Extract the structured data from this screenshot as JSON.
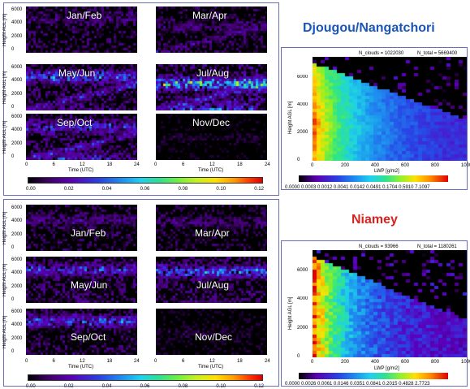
{
  "colors": {
    "frame": "#6a6fb5",
    "title_blue": "#1a56b8",
    "title_red": "#d8231d"
  },
  "left_top": {
    "panels": [
      "Jan/Feb",
      "Mar/Apr",
      "May/Jun",
      "Jul/Aug",
      "Sep/Oct",
      "Nov/Dec"
    ],
    "ylabel": "Height AGL [m]",
    "y_ticks": [
      "6000",
      "4000",
      "2000",
      "0"
    ],
    "x_ticks_left": [
      "0",
      "6",
      "12",
      "18",
      "24"
    ],
    "x_ticks_right": [
      "0",
      "6",
      "12",
      "18",
      "24"
    ],
    "xlabel": "Time (UTC)",
    "colorbar_ticks": [
      "0.00",
      "0.02",
      "0.04",
      "0.06",
      "0.08",
      "0.10",
      "0.12"
    ]
  },
  "left_bottom": {
    "panels": [
      "Jan/Feb",
      "Mar/Apr",
      "May/Jun",
      "Jul/Aug",
      "Sep/Oct",
      "Nov/Dec"
    ],
    "ylabel": "Height AGL [m]",
    "y_ticks": [
      "6000",
      "4000",
      "2000",
      "0"
    ],
    "x_ticks_left": [
      "0",
      "6",
      "12",
      "18",
      "24"
    ],
    "x_ticks_right": [
      "0",
      "6",
      "12",
      "18",
      "24"
    ],
    "xlabel": "Time (UTC)",
    "colorbar_ticks": [
      "0.00",
      "0.02",
      "0.04",
      "0.06",
      "0.08",
      "0.10",
      "0.12"
    ]
  },
  "right_top": {
    "title": "Djougou/Nangatchori",
    "n_clouds": "N_clouds = 1022030",
    "n_total": "N_total = 5669400",
    "ylabel": "Height AGL [m]",
    "xlabel": "LWP [g/m2]",
    "y_ticks": [
      "6000",
      "4000",
      "2000",
      "0"
    ],
    "x_ticks": [
      "0",
      "200",
      "400",
      "600",
      "800",
      "1000"
    ],
    "colorbar_ticks": "0.0000  0.0003  0.0012  0.0041  0.0142  0.0491  0.1704  0.5910  7.1097"
  },
  "right_bottom": {
    "title": "Niamey",
    "n_clouds": "N_clouds =   93966",
    "n_total": "N_total = 1180261",
    "ylabel": "Height AGL [m]",
    "xlabel": "LWP [g/m2]",
    "y_ticks": [
      "6000",
      "4000",
      "2000",
      "0"
    ],
    "x_ticks": [
      "0",
      "200",
      "400",
      "600",
      "800",
      "1000"
    ],
    "colorbar_ticks": "0.0000  0.0026  0.0061  0.0146  0.0351  0.0841  0.2015  0.4828  2.7723"
  },
  "chart_data": [
    {
      "type": "heatmap",
      "title": "",
      "panels": [
        "Jan/Feb",
        "Mar/Apr",
        "May/Jun",
        "Jul/Aug",
        "Sep/Oct",
        "Nov/Dec"
      ],
      "xlabel": "Time (UTC)",
      "ylabel": "Height AGL [m]",
      "xlim": [
        0,
        24
      ],
      "ylim": [
        0,
        7000
      ],
      "colorbar_range": [
        0.0,
        0.12
      ]
    },
    {
      "type": "heatmap",
      "title": "",
      "panels": [
        "Jan/Feb",
        "Mar/Apr",
        "May/Jun",
        "Jul/Aug",
        "Sep/Oct",
        "Nov/Dec"
      ],
      "xlabel": "Time (UTC)",
      "ylabel": "Height AGL [m]",
      "xlim": [
        0,
        24
      ],
      "ylim": [
        0,
        7000
      ],
      "colorbar_range": [
        0.0,
        0.12
      ]
    },
    {
      "type": "heatmap",
      "title": "Djougou/Nangatchori",
      "xlabel": "LWP [g/m2]",
      "ylabel": "Height AGL [m]",
      "xlim": [
        0,
        1000
      ],
      "ylim": [
        0,
        7500
      ],
      "n_clouds": 1022030,
      "n_total": 5669400
    },
    {
      "type": "heatmap",
      "title": "Niamey",
      "xlabel": "LWP [g/m2]",
      "ylabel": "Height AGL [m]",
      "xlim": [
        0,
        1000
      ],
      "ylim": [
        0,
        7500
      ],
      "n_clouds": 93966,
      "n_total": 1180261
    }
  ]
}
